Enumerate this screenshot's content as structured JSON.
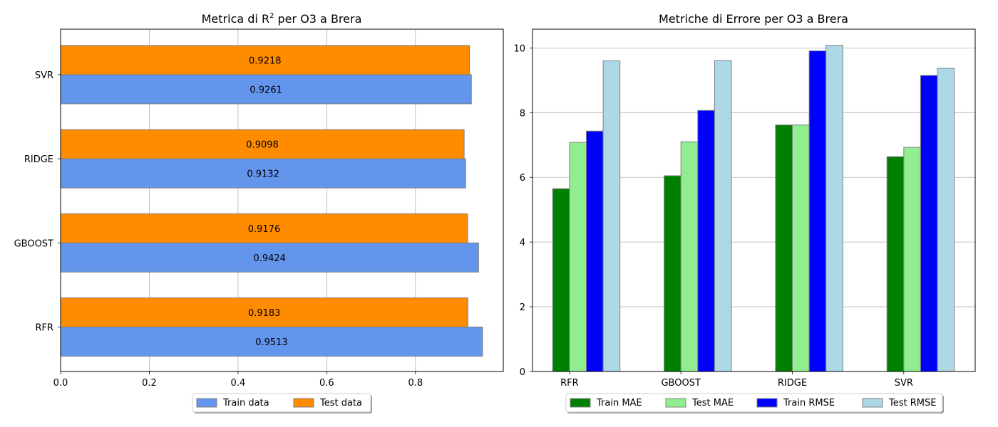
{
  "chart_data": [
    {
      "type": "bar",
      "orientation": "horizontal",
      "title_prefix": "Metrica di R",
      "title_superscript": "2",
      "title_suffix": " per O3 a Brera",
      "categories": [
        "RFR",
        "GBOOST",
        "RIDGE",
        "SVR"
      ],
      "series": [
        {
          "name": "Train data",
          "values": [
            0.9513,
            0.9424,
            0.9132,
            0.9261
          ],
          "color": "#6495ED"
        },
        {
          "name": "Test data",
          "values": [
            0.9183,
            0.9176,
            0.9098,
            0.9218
          ],
          "color": "#FF8C00"
        }
      ],
      "data_labels": {
        "Train data": [
          "0.9513",
          "0.9424",
          "0.9132",
          "0.9261"
        ],
        "Test data": [
          "0.9183",
          "0.9176",
          "0.9098",
          "0.9218"
        ]
      },
      "xticks": [
        "0.0",
        "0.2",
        "0.4",
        "0.6",
        "0.8"
      ],
      "xlim": [
        0,
        0.998
      ],
      "grid": "x",
      "legend_position": "bottom-center"
    },
    {
      "type": "bar",
      "orientation": "vertical",
      "title": "Metriche di Errore per O3 a Brera",
      "categories": [
        "RFR",
        "GBOOST",
        "RIDGE",
        "SVR"
      ],
      "series": [
        {
          "name": "Train MAE",
          "values": [
            5.65,
            6.05,
            7.62,
            6.64
          ],
          "color": "#008000"
        },
        {
          "name": "Test MAE",
          "values": [
            7.08,
            7.1,
            7.62,
            6.93
          ],
          "color": "#90EE90"
        },
        {
          "name": "Train RMSE",
          "values": [
            7.43,
            8.07,
            9.91,
            9.15
          ],
          "color": "#0000FF"
        },
        {
          "name": "Test RMSE",
          "values": [
            9.6,
            9.61,
            10.08,
            9.37
          ],
          "color": "#ADD8E6"
        }
      ],
      "yticks": [
        "0",
        "2",
        "4",
        "6",
        "8",
        "10"
      ],
      "ylim": [
        0,
        10.58
      ],
      "grid": "y",
      "legend_position": "bottom-center"
    }
  ]
}
